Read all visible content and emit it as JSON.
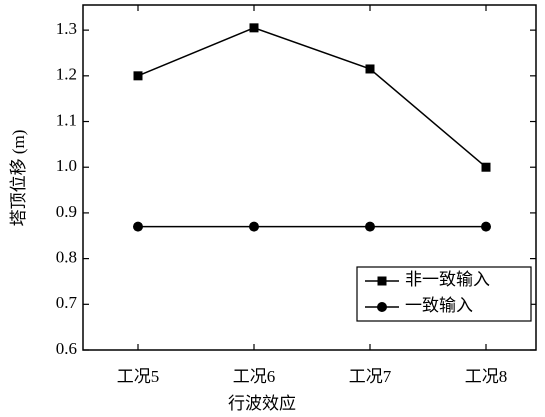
{
  "chart_data": {
    "type": "line",
    "x_label": "行波效应",
    "y_label": "塔顶位移 (m)",
    "categories": [
      "工况5",
      "工况6",
      "工况7",
      "工况8"
    ],
    "series": [
      {
        "name": "非一致输入",
        "color": "#000000",
        "marker": "square",
        "values": [
          1.2,
          1.305,
          1.215,
          1.0
        ]
      },
      {
        "name": "一致输入",
        "color": "#000000",
        "marker": "circle",
        "values": [
          0.87,
          0.87,
          0.87,
          0.87
        ]
      }
    ],
    "ylim": [
      0.6,
      1.355
    ],
    "yticks": [
      0.6,
      0.7,
      0.8,
      0.9,
      {
        "value": 1,
        "label": "1.0"
      },
      1.1,
      1.2,
      1.3
    ],
    "legend": "lower-right"
  }
}
